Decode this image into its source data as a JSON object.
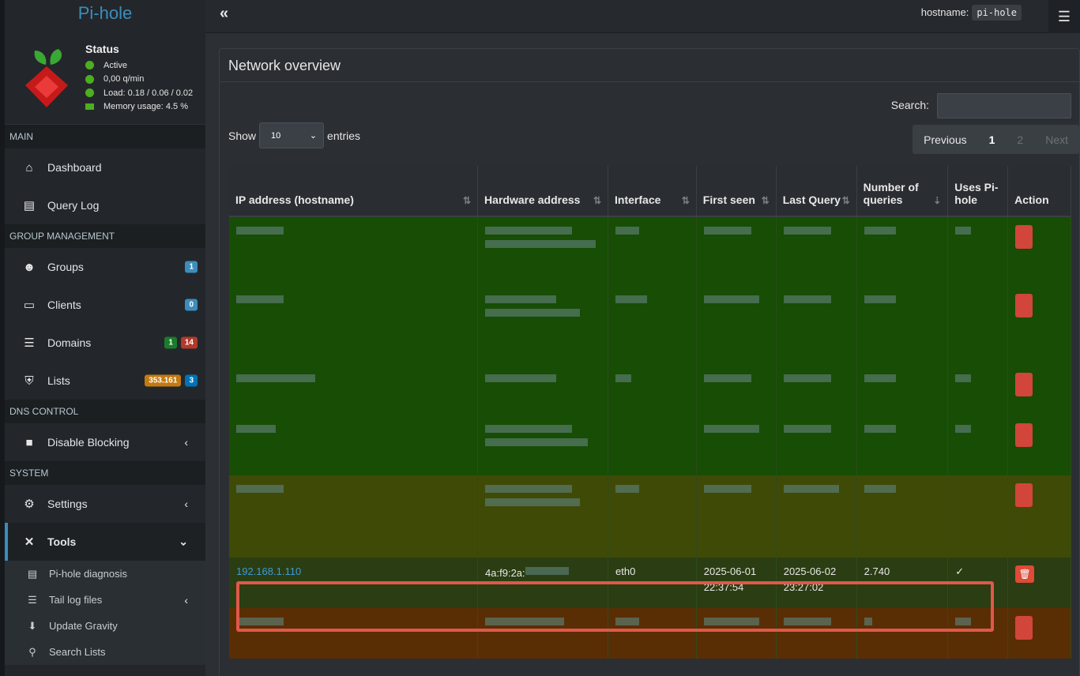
{
  "brand": "Pi-hole",
  "status": {
    "title": "Status",
    "active": "Active",
    "rate": "0,00 q/min",
    "load": "Load: 0.18 / 0.06 / 0.02",
    "memory": "Memory usage: 4.5 %"
  },
  "sidebar": {
    "main": "MAIN",
    "dashboard": "Dashboard",
    "query_log": "Query Log",
    "group_mgmt": "GROUP MANAGEMENT",
    "groups": "Groups",
    "groups_badge": "1",
    "clients": "Clients",
    "clients_badge": "0",
    "domains": "Domains",
    "domains_badge_a": "1",
    "domains_badge_b": "14",
    "lists": "Lists",
    "lists_badge_a": "353.161",
    "lists_badge_b": "3",
    "dns_control": "DNS CONTROL",
    "disable_blocking": "Disable Blocking",
    "system": "SYSTEM",
    "settings": "Settings",
    "tools": "Tools",
    "pihole_diagnosis": "Pi-hole diagnosis",
    "tail_log_files": "Tail log files",
    "update_gravity": "Update Gravity",
    "search_lists": "Search Lists"
  },
  "topbar": {
    "toggle": "«",
    "hostname_label": "hostname:",
    "hostname_value": "pi-hole"
  },
  "main": {
    "title": "Network overview",
    "search_label": "Search:",
    "show_label": "Show",
    "show_value": "10",
    "entries_label": "entries",
    "pager_prev": "Previous",
    "pager_1": "1",
    "pager_2": "2",
    "pager_next": "Next"
  },
  "table": {
    "headers": [
      "IP address (hostname)",
      "Hardware address",
      "Interface",
      "First seen",
      "Last Query",
      "Number of queries",
      "Uses Pi-hole",
      "Action"
    ],
    "highlight_row": {
      "ip": "192.168.1.110",
      "hw": "4a:f9:2a:",
      "iface": "eth0",
      "first_date": "2025-06-01",
      "first_time": "22:37:54",
      "last_date": "2025-06-02",
      "last_time": "23:27:02",
      "queries": "2.740",
      "uses": "✓"
    }
  },
  "colors": {
    "accent": "#3c8dbc",
    "row_green": "#174d05",
    "row_olive": "#3f4a07",
    "row_orange": "#5a2e05",
    "highlight_border": "#e0584a"
  }
}
